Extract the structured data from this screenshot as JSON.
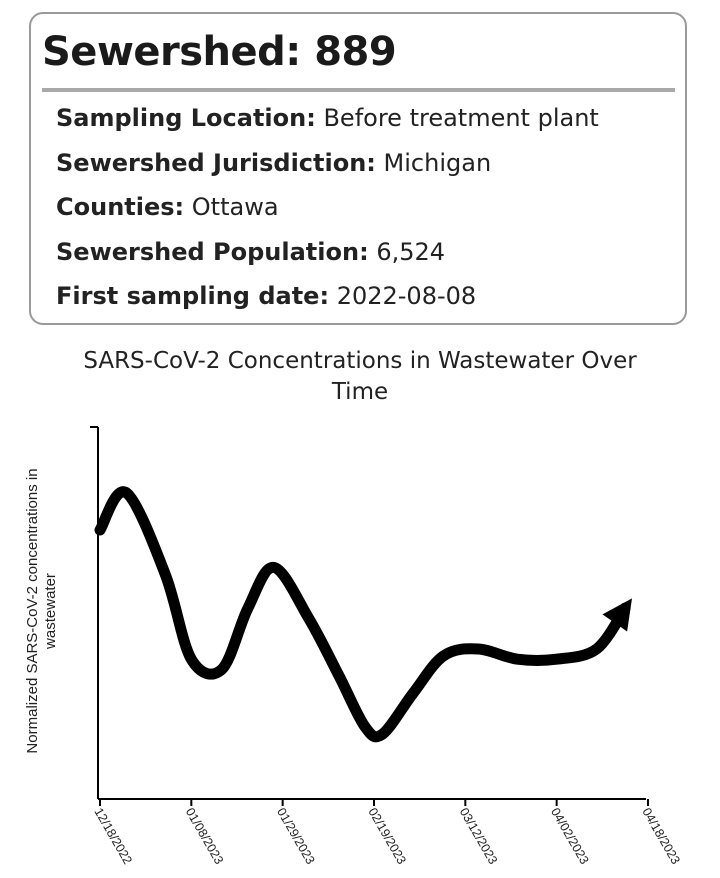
{
  "card": {
    "title": "Sewershed: 889",
    "fields": [
      {
        "label": "Sampling Location:",
        "value": "Before treatment plant"
      },
      {
        "label": "Sewershed Jurisdiction:",
        "value": "Michigan"
      },
      {
        "label": "Counties:",
        "value": "Ottawa"
      },
      {
        "label": "Sewershed Population:",
        "value": "6,524"
      },
      {
        "label": "First sampling date:",
        "value": "2022-08-08"
      }
    ]
  },
  "chart_data": {
    "type": "line",
    "title_line1": "SARS-CoV-2 Concentrations in Wastewater Over",
    "title_line2": "Time",
    "xlabel": "",
    "ylabel_line1": "Normalized SARS-CoV-2 concentrations in",
    "ylabel_line2": "wastewater",
    "x_tick_labels": [
      "12/18/2022",
      "01/08/2023",
      "01/29/2023",
      "02/19/2023",
      "03/12/2023",
      "04/02/2023",
      "04/18/2023"
    ],
    "y_ticks_labeled": false,
    "ylim": [
      0,
      1
    ],
    "grid": false,
    "legend": "none",
    "line_color": "#000000",
    "end_marker": "arrow",
    "series": [
      {
        "x": [
          "2022-12-18",
          "2022-12-24",
          "2023-01-02",
          "2023-01-08",
          "2023-01-15",
          "2023-01-21",
          "2023-01-27",
          "2023-02-04",
          "2023-02-11",
          "2023-02-17",
          "2023-02-21",
          "2023-02-28",
          "2023-03-07",
          "2023-03-15",
          "2023-03-24",
          "2023-04-02",
          "2023-04-09",
          "2023-04-14"
        ],
        "values": [
          0.75,
          0.86,
          0.62,
          0.37,
          0.34,
          0.52,
          0.64,
          0.49,
          0.32,
          0.17,
          0.15,
          0.27,
          0.38,
          0.4,
          0.37,
          0.37,
          0.4,
          0.52
        ]
      }
    ]
  }
}
